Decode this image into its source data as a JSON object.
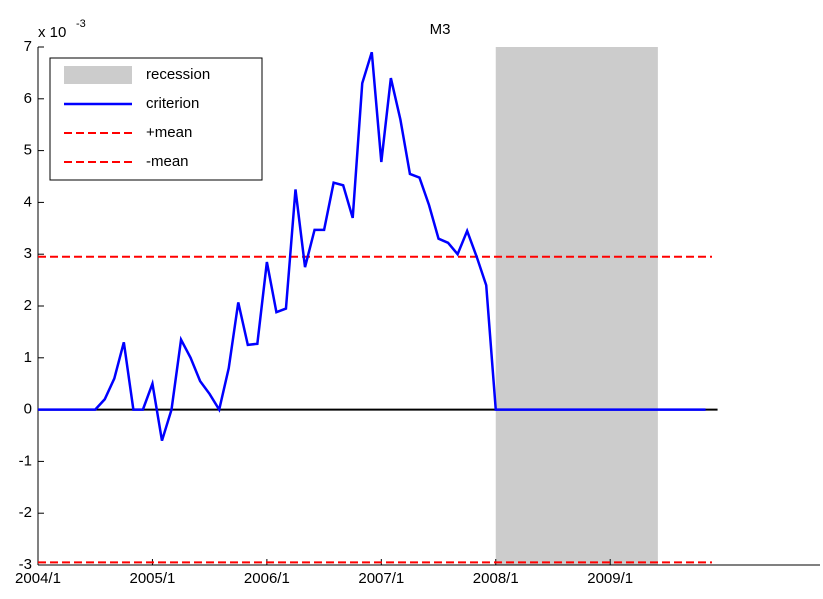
{
  "chart_data": {
    "type": "line",
    "title": "M3",
    "y_multiplier": {
      "base": "x 10",
      "exponent": "-3"
    },
    "x": [
      "2004/1",
      "2004/2",
      "2004/3",
      "2004/4",
      "2004/5",
      "2004/6",
      "2004/7",
      "2004/8",
      "2004/9",
      "2004/10",
      "2004/11",
      "2004/12",
      "2005/1",
      "2005/2",
      "2005/3",
      "2005/4",
      "2005/5",
      "2005/6",
      "2005/7",
      "2005/8",
      "2005/9",
      "2005/10",
      "2005/11",
      "2005/12",
      "2006/1",
      "2006/2",
      "2006/3",
      "2006/4",
      "2006/5",
      "2006/6",
      "2006/7",
      "2006/8",
      "2006/9",
      "2006/10",
      "2006/11",
      "2006/12",
      "2007/1",
      "2007/2",
      "2007/3",
      "2007/4",
      "2007/5",
      "2007/6",
      "2007/7",
      "2007/8",
      "2007/9",
      "2007/10",
      "2007/11",
      "2007/12",
      "2008/1",
      "2008/2",
      "2008/3",
      "2008/4",
      "2008/5",
      "2008/6",
      "2008/7",
      "2008/8",
      "2008/9",
      "2008/10",
      "2008/11",
      "2008/12",
      "2009/1",
      "2009/2",
      "2009/3",
      "2009/4",
      "2009/5",
      "2009/6",
      "2009/7",
      "2009/8",
      "2009/9",
      "2009/10",
      "2009/11"
    ],
    "series": [
      {
        "name": "criterion",
        "color": "#0000ff",
        "values": [
          0,
          0,
          0,
          0,
          0,
          0,
          0,
          0.2,
          0.6,
          1.3,
          0,
          0,
          0.5,
          -0.6,
          0,
          1.35,
          1.0,
          0.55,
          0.3,
          0,
          0.8,
          2.07,
          1.25,
          1.27,
          2.85,
          1.88,
          1.95,
          4.25,
          2.75,
          3.47,
          3.47,
          4.38,
          4.33,
          3.7,
          6.3,
          6.9,
          4.78,
          6.4,
          5.6,
          4.55,
          4.48,
          3.95,
          3.3,
          3.22,
          3.0,
          3.45,
          2.95,
          2.4,
          0,
          0,
          0,
          0,
          0,
          0,
          0,
          0,
          0,
          0,
          0,
          0,
          0,
          0,
          0,
          0,
          0,
          0,
          0,
          0,
          0,
          0,
          0
        ]
      }
    ],
    "recession": {
      "name": "recession",
      "color": "#cccccc",
      "start": "2008/1",
      "end": "2009/6"
    },
    "reference_lines": [
      {
        "name": "+mean",
        "color": "#ff0000",
        "value": 2.95
      },
      {
        "name": "-mean",
        "color": "#ff0000",
        "value": -2.95
      }
    ],
    "baseline": 0,
    "xlim": [
      "2004/1",
      "2010/11"
    ],
    "xticks": [
      "2004/1",
      "2005/1",
      "2006/1",
      "2007/1",
      "2008/1",
      "2009/1"
    ],
    "ylim": [
      -3,
      7
    ],
    "yticks": [
      -3,
      -2,
      -1,
      0,
      1,
      2,
      3,
      4,
      5,
      6,
      7
    ],
    "legend": "upper left"
  }
}
